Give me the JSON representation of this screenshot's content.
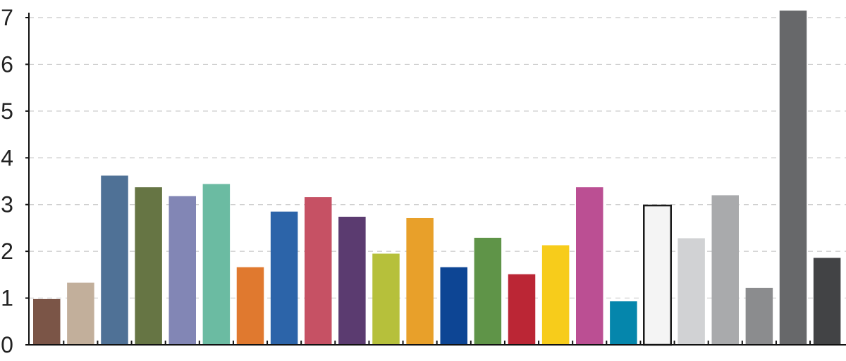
{
  "chart_data": {
    "type": "bar",
    "title": "",
    "xlabel": "",
    "ylabel": "",
    "ylim": [
      0,
      7
    ],
    "yticks": [
      "0",
      "1",
      "2",
      "3",
      "4",
      "5",
      "6",
      "7"
    ],
    "grid": true,
    "legend": "none",
    "bars": [
      {
        "value": 0.98,
        "color": "#7b5547"
      },
      {
        "value": 1.33,
        "color": "#c2af9b"
      },
      {
        "value": 3.62,
        "color": "#4f7196"
      },
      {
        "value": 3.37,
        "color": "#667544"
      },
      {
        "value": 3.18,
        "color": "#8286b5"
      },
      {
        "value": 3.44,
        "color": "#6bbba2"
      },
      {
        "value": 1.66,
        "color": "#e0792f"
      },
      {
        "value": 2.85,
        "color": "#2c64a9"
      },
      {
        "value": 3.16,
        "color": "#c65164"
      },
      {
        "value": 2.74,
        "color": "#5b3b70"
      },
      {
        "value": 1.95,
        "color": "#b6c03b"
      },
      {
        "value": 2.71,
        "color": "#e8a02a"
      },
      {
        "value": 1.66,
        "color": "#0d4594"
      },
      {
        "value": 2.29,
        "color": "#5f9448"
      },
      {
        "value": 1.51,
        "color": "#bb2635"
      },
      {
        "value": 2.13,
        "color": "#f7cc1b"
      },
      {
        "value": 3.37,
        "color": "#bb4f93"
      },
      {
        "value": 0.93,
        "color": "#0586ac"
      },
      {
        "value": 2.98,
        "color": "#f4f4f4",
        "outline": "#1a1a1a"
      },
      {
        "value": 2.28,
        "color": "#d1d2d4"
      },
      {
        "value": 3.2,
        "color": "#a9aaac"
      },
      {
        "value": 1.22,
        "color": "#8b8c8e"
      },
      {
        "value": 7.15,
        "color": "#67686a"
      },
      {
        "value": 1.86,
        "color": "#424345"
      }
    ]
  }
}
